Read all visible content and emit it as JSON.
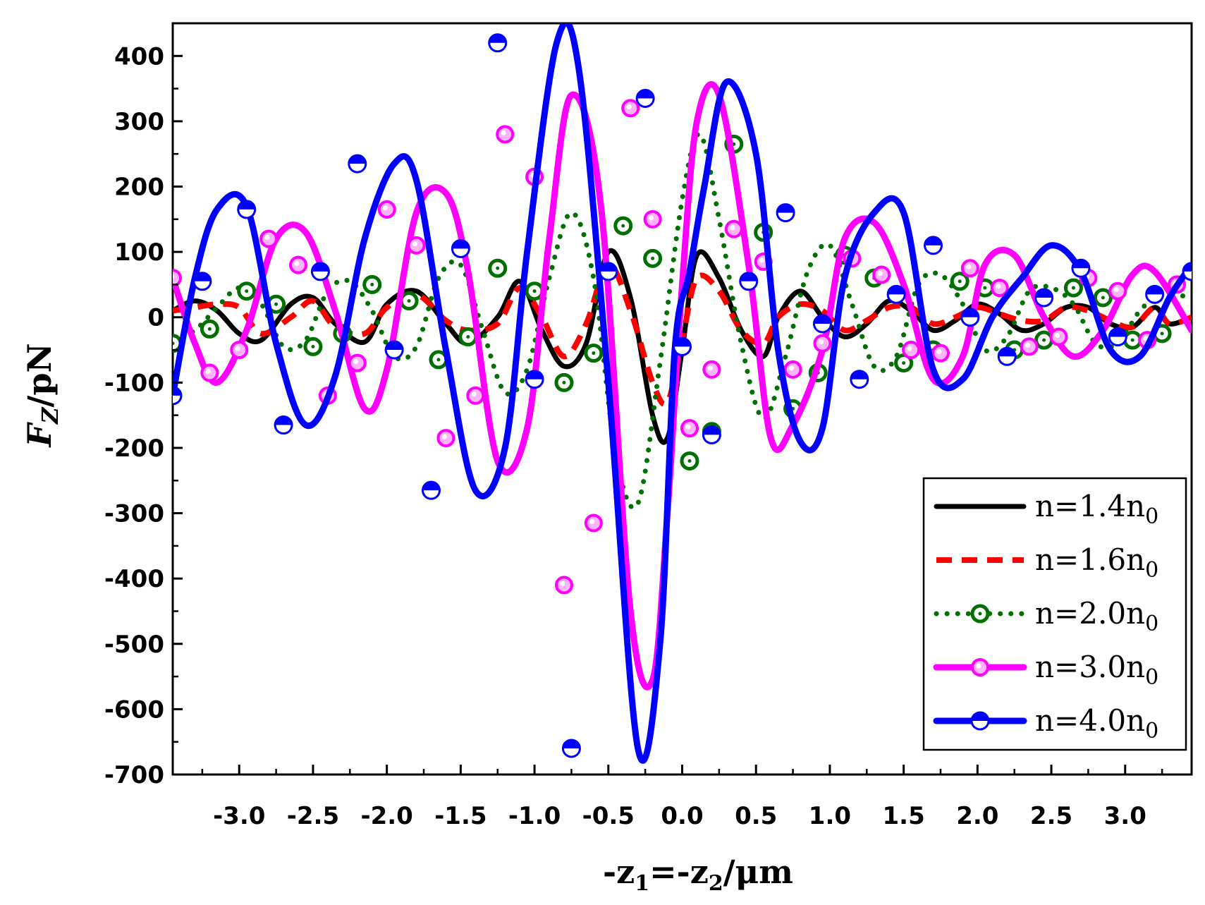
{
  "chart_data": {
    "type": "line",
    "xlabel": "-z",
    "xlabel_sub1": "1",
    "xlabel_mid": "=-z",
    "xlabel_sub2": "2",
    "xlabel_unit": "/μm",
    "ylabel": "F",
    "ylabel_sub": "Z",
    "ylabel_unit": "/pN",
    "xlim": [
      -3.45,
      3.45
    ],
    "ylim": [
      -700,
      450
    ],
    "xticks": [
      -3.0,
      -2.5,
      -2.0,
      -1.5,
      -1.0,
      -0.5,
      0.0,
      0.5,
      1.0,
      1.5,
      2.0,
      2.5,
      3.0
    ],
    "xtick_labels": [
      "-3.0",
      "-2.5",
      "-2.0",
      "-1.5",
      "-1.0",
      "-0.5",
      "0.0",
      "0.5",
      "1.0",
      "1.5",
      "2.0",
      "2.5",
      "3.0"
    ],
    "yticks": [
      400,
      300,
      200,
      100,
      0,
      -100,
      -200,
      -300,
      -400,
      -500,
      -600,
      -700
    ],
    "ytick_labels": [
      "400",
      "300",
      "200",
      "100",
      "0",
      "-100",
      "-200",
      "-300",
      "-400",
      "-500",
      "-600",
      "-700"
    ],
    "legend_position": "bottom-right",
    "grid": false,
    "series": [
      {
        "name": "n=1.4n",
        "name_sub": "0",
        "color": "#000000",
        "style": "solid",
        "marker": "none",
        "x": [
          -3.45,
          -3.3,
          -3.15,
          -3.0,
          -2.85,
          -2.65,
          -2.5,
          -2.35,
          -2.15,
          -2.0,
          -1.8,
          -1.6,
          -1.45,
          -1.25,
          -1.1,
          -0.95,
          -0.8,
          -0.65,
          -0.5,
          -0.35,
          -0.2,
          -0.1,
          0.0,
          0.1,
          0.25,
          0.4,
          0.55,
          0.65,
          0.8,
          0.95,
          1.1,
          1.25,
          1.4,
          1.55,
          1.7,
          1.85,
          2.0,
          2.15,
          2.3,
          2.45,
          2.6,
          2.75,
          2.9,
          3.05,
          3.2,
          3.3,
          3.45
        ],
        "y": [
          10,
          25,
          10,
          -25,
          -35,
          20,
          30,
          -10,
          -38,
          20,
          40,
          -10,
          -40,
          0,
          55,
          -20,
          -75,
          -40,
          100,
          30,
          -150,
          -185,
          -50,
          95,
          60,
          -20,
          -60,
          0,
          40,
          0,
          -30,
          -10,
          25,
          10,
          -20,
          -5,
          20,
          5,
          -20,
          -10,
          15,
          15,
          -10,
          -15,
          15,
          -10,
          0
        ]
      },
      {
        "name": "n=1.6n",
        "name_sub": "0",
        "color": "#ff0000",
        "style": "dashed",
        "marker": "none",
        "x": [
          -3.45,
          -3.3,
          -3.15,
          -3.0,
          -2.85,
          -2.65,
          -2.5,
          -2.35,
          -2.15,
          -2.0,
          -1.8,
          -1.6,
          -1.45,
          -1.25,
          -1.1,
          -0.95,
          -0.8,
          -0.65,
          -0.5,
          -0.35,
          -0.2,
          -0.1,
          0.0,
          0.1,
          0.25,
          0.4,
          0.55,
          0.65,
          0.8,
          0.95,
          1.1,
          1.25,
          1.4,
          1.55,
          1.7,
          1.85,
          2.0,
          2.15,
          2.3,
          2.45,
          2.6,
          2.75,
          2.9,
          3.05,
          3.2,
          3.3,
          3.45
        ],
        "y": [
          10,
          15,
          20,
          15,
          -25,
          0,
          25,
          -15,
          -25,
          15,
          35,
          -5,
          -20,
          -10,
          45,
          0,
          -60,
          -10,
          80,
          10,
          -100,
          -130,
          -35,
          60,
          40,
          -20,
          -40,
          0,
          20,
          10,
          -20,
          -5,
          15,
          15,
          -10,
          0,
          15,
          5,
          -5,
          -5,
          15,
          10,
          -5,
          -15,
          15,
          -10,
          0
        ]
      },
      {
        "name": "n=2.0n",
        "name_sub": "0",
        "color": "#007000",
        "style": "dotted",
        "marker": "ring",
        "x": [
          -3.45,
          -3.3,
          -3.15,
          -3.0,
          -2.85,
          -2.7,
          -2.55,
          -2.4,
          -2.25,
          -2.1,
          -1.95,
          -1.8,
          -1.65,
          -1.5,
          -1.35,
          -1.2,
          -1.05,
          -0.9,
          -0.75,
          -0.6,
          -0.45,
          -0.3,
          -0.15,
          0.0,
          0.12,
          0.25,
          0.4,
          0.55,
          0.7,
          0.85,
          1.0,
          1.15,
          1.3,
          1.45,
          1.6,
          1.75,
          1.9,
          2.05,
          2.2,
          2.35,
          2.5,
          2.65,
          2.8,
          2.95,
          3.1,
          3.25,
          3.45
        ],
        "y": [
          -35,
          -20,
          15,
          45,
          20,
          -45,
          -35,
          40,
          55,
          10,
          -60,
          -45,
          60,
          80,
          -20,
          -115,
          -80,
          60,
          160,
          60,
          -210,
          -285,
          -70,
          180,
          280,
          150,
          -40,
          -155,
          -60,
          70,
          110,
          20,
          -75,
          -60,
          50,
          65,
          20,
          -50,
          -30,
          40,
          45,
          20,
          -40,
          -40,
          10,
          35,
          30
        ],
        "marker_x": [
          -3.45,
          -3.2,
          -2.95,
          -2.75,
          -2.5,
          -2.3,
          -2.1,
          -1.85,
          -1.65,
          -1.45,
          -1.25,
          -1.0,
          -0.8,
          -0.6,
          -0.4,
          -0.2,
          0.05,
          0.2,
          0.35,
          0.55,
          0.75,
          0.92,
          1.1,
          1.3,
          1.5,
          1.7,
          1.88,
          2.05,
          2.25,
          2.45,
          2.65,
          2.85,
          3.05,
          3.25
        ],
        "marker_y": [
          -40,
          -18,
          40,
          20,
          -45,
          -25,
          50,
          25,
          -65,
          -30,
          75,
          40,
          -100,
          -55,
          140,
          90,
          -220,
          -175,
          265,
          130,
          -140,
          -85,
          95,
          60,
          -70,
          -50,
          55,
          45,
          -50,
          -35,
          45,
          30,
          -35,
          -25
        ]
      },
      {
        "name": "n=3.0n",
        "name_sub": "0",
        "color": "#ff00ff",
        "style": "solid",
        "marker": "circle",
        "x": [
          -3.45,
          -3.3,
          -3.15,
          -2.95,
          -2.75,
          -2.55,
          -2.35,
          -2.15,
          -2.0,
          -1.8,
          -1.6,
          -1.45,
          -1.25,
          -1.05,
          -0.9,
          -0.75,
          -0.55,
          -0.35,
          -0.2,
          -0.1,
          0.0,
          0.1,
          0.25,
          0.45,
          0.6,
          0.75,
          0.95,
          1.1,
          1.3,
          1.5,
          1.7,
          1.9,
          2.05,
          2.25,
          2.45,
          2.65,
          2.85,
          3.05,
          3.2,
          3.45
        ],
        "y": [
          60,
          -40,
          -100,
          -20,
          120,
          130,
          10,
          -140,
          -80,
          160,
          190,
          70,
          -220,
          -170,
          120,
          340,
          170,
          -450,
          -555,
          -300,
          50,
          300,
          340,
          80,
          -185,
          -165,
          -50,
          120,
          145,
          50,
          -95,
          -60,
          80,
          95,
          0,
          -60,
          -20,
          65,
          70,
          -20
        ],
        "marker_x": [
          -3.45,
          -3.2,
          -3.0,
          -2.8,
          -2.6,
          -2.4,
          -2.2,
          -2.0,
          -1.8,
          -1.6,
          -1.4,
          -1.2,
          -1.0,
          -0.8,
          -0.6,
          -0.35,
          -0.2,
          0.05,
          0.2,
          0.35,
          0.55,
          0.75,
          0.95,
          1.15,
          1.35,
          1.55,
          1.75,
          1.95,
          2.15,
          2.35,
          2.55,
          2.75,
          2.95,
          3.15,
          3.35
        ],
        "marker_y": [
          60,
          -85,
          -50,
          120,
          80,
          -120,
          -70,
          165,
          110,
          -185,
          -120,
          280,
          215,
          -410,
          -315,
          320,
          150,
          -170,
          -80,
          135,
          85,
          -80,
          -40,
          90,
          65,
          -50,
          -55,
          75,
          45,
          -45,
          -30,
          60,
          40,
          -35,
          50
        ]
      },
      {
        "name": "n=4.0n",
        "name_sub": "0",
        "color": "#0000ff",
        "style": "solid",
        "marker": "half-circle",
        "x": [
          -3.45,
          -3.3,
          -3.15,
          -2.95,
          -2.75,
          -2.55,
          -2.35,
          -2.15,
          -1.95,
          -1.8,
          -1.6,
          -1.4,
          -1.2,
          -1.05,
          -0.85,
          -0.7,
          -0.5,
          -0.3,
          -0.15,
          -0.05,
          0.05,
          0.15,
          0.3,
          0.5,
          0.65,
          0.8,
          0.95,
          1.1,
          1.3,
          1.5,
          1.7,
          1.9,
          2.1,
          2.3,
          2.5,
          2.7,
          2.9,
          3.1,
          3.3,
          3.45
        ],
        "y": [
          -120,
          60,
          165,
          170,
          -40,
          -165,
          -90,
          120,
          235,
          210,
          -50,
          -265,
          -200,
          100,
          420,
          380,
          -100,
          -660,
          -500,
          -50,
          70,
          200,
          360,
          250,
          -50,
          -190,
          -170,
          60,
          160,
          160,
          -80,
          -95,
          0,
          60,
          110,
          70,
          -50,
          -60,
          30,
          80
        ],
        "marker_x": [
          -3.45,
          -3.25,
          -2.95,
          -2.7,
          -2.45,
          -2.2,
          -1.95,
          -1.7,
          -1.5,
          -1.25,
          -1.0,
          -0.75,
          -0.5,
          -0.25,
          0.0,
          0.2,
          0.45,
          0.7,
          0.95,
          1.2,
          1.45,
          1.7,
          1.95,
          2.2,
          2.45,
          2.7,
          2.95,
          3.2,
          3.45
        ],
        "marker_y": [
          -120,
          55,
          165,
          -165,
          70,
          235,
          -50,
          -265,
          105,
          420,
          -95,
          -660,
          70,
          335,
          -45,
          -180,
          55,
          160,
          -10,
          -95,
          35,
          110,
          0,
          -60,
          30,
          75,
          -30,
          35,
          70
        ]
      }
    ]
  }
}
